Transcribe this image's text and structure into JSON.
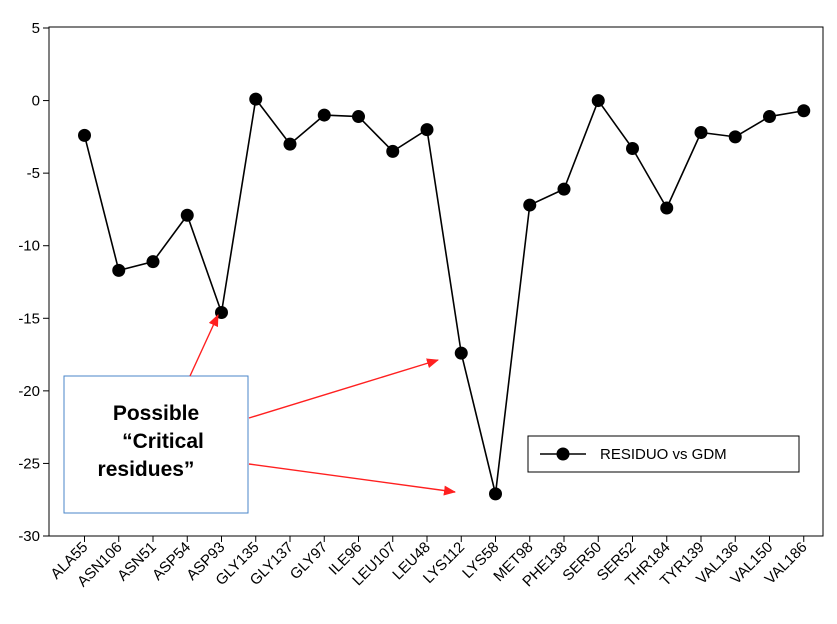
{
  "chart_data": {
    "type": "line",
    "title": "",
    "xlabel": "",
    "ylabel": "",
    "ylim": [
      -30,
      5
    ],
    "yticks": [
      5,
      0,
      -5,
      -10,
      -15,
      -20,
      -25,
      -30
    ],
    "grid": false,
    "legend_position": "bottom-right",
    "categories": [
      "ALA55",
      "ASN106",
      "ASN51",
      "ASP54",
      "ASP93",
      "GLY135",
      "GLY137",
      "GLY97",
      "ILE96",
      "LEU107",
      "LEU48",
      "LYS112",
      "LYS58",
      "MET98",
      "PHE138",
      "SER50",
      "SER52",
      "THR184",
      "TYR139",
      "VAL136",
      "VAL150",
      "VAL186"
    ],
    "series": [
      {
        "name": "RESIDUO vs GDM",
        "values": [
          -2.4,
          -11.7,
          -11.1,
          -7.9,
          -14.6,
          0.1,
          -3.0,
          -1.0,
          -1.1,
          -3.5,
          -2.0,
          -17.4,
          -27.1,
          -7.2,
          -6.1,
          0.0,
          -3.3,
          -7.4,
          -2.2,
          -2.5,
          -1.1,
          -0.7
        ]
      }
    ],
    "annotation": {
      "lines": [
        "Possible",
        "“Critical",
        "residues”"
      ],
      "targets": [
        "ASP93",
        "LYS112",
        "LYS58"
      ]
    },
    "colors": {
      "line": "#000000",
      "marker": "#000000",
      "arrow": "#ff2020",
      "annotation_border": "#4a86c8"
    }
  }
}
